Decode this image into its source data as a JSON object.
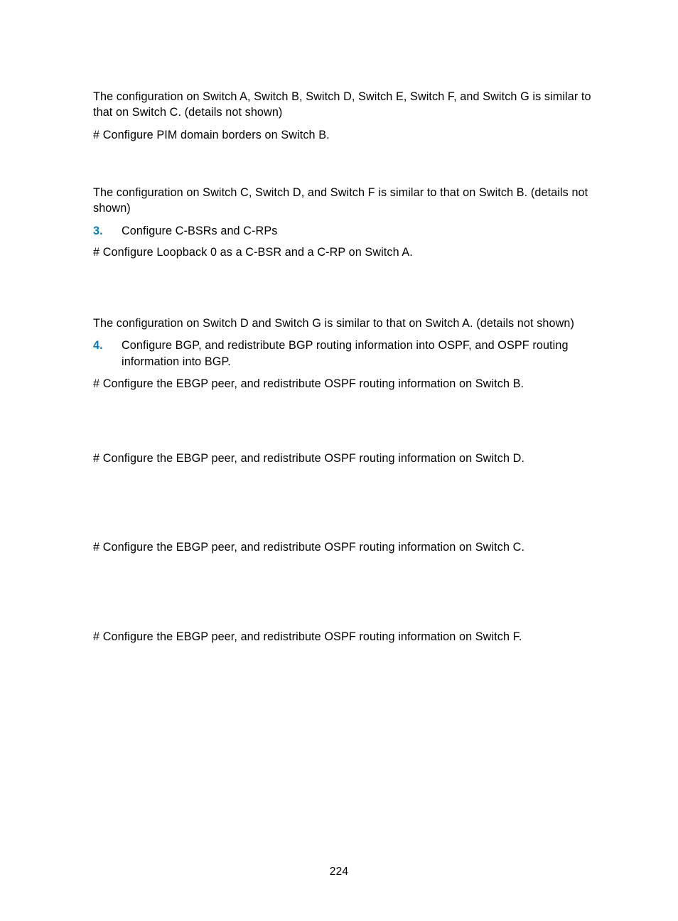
{
  "colors": {
    "text": "#000000",
    "accent": "#007fc6",
    "background": "#ffffff"
  },
  "typography": {
    "body_fontsize_pt": 12,
    "accent_weight": "600",
    "font_family": "Futura / Century Gothic style sans-serif"
  },
  "p1": "The configuration on Switch A, Switch B, Switch D, Switch E, Switch F, and Switch G is similar to that on Switch C. (details not shown)",
  "p2": "# Configure PIM domain borders on Switch B.",
  "p3": "The configuration on Switch C, Switch D, and Switch F is similar to that on Switch B. (details not shown)",
  "list1": {
    "num": "3.",
    "text": "Configure C-BSRs and C-RPs"
  },
  "p4": "# Configure Loopback 0 as a C-BSR and a C-RP on Switch A.",
  "p5": "The configuration on Switch D and Switch G is similar to that on Switch A. (details not shown)",
  "list2": {
    "num": "4.",
    "text": "Configure BGP, and redistribute BGP routing information into OSPF, and OSPF routing information into BGP."
  },
  "p6": "# Configure the EBGP peer, and redistribute OSPF routing information on Switch B.",
  "p7": "# Configure the EBGP peer, and redistribute OSPF routing information on Switch D.",
  "p8": "# Configure the EBGP peer, and redistribute OSPF routing information on Switch C.",
  "p9": "# Configure the EBGP peer, and redistribute OSPF routing information on Switch F.",
  "page_number": "224"
}
